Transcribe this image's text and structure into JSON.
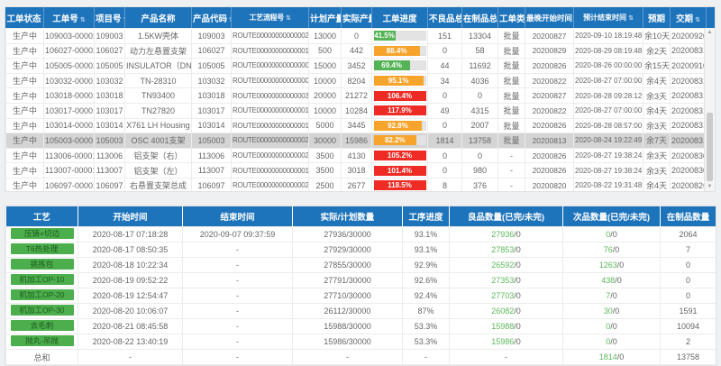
{
  "colors": {
    "header_bg": "#1e74bb",
    "green": "#54b354",
    "orange": "#f6a42c",
    "red": "#ee2b24",
    "badge_green": "#4cae4c",
    "selected_row": "#d4d4d4",
    "good_number": "#5cb85c"
  },
  "scrollbar": {
    "up_icon": "▲",
    "down_icon": "▼"
  },
  "work_orders": {
    "columns": [
      {
        "label": "工单状态",
        "sort": true
      },
      {
        "label": "工单号",
        "sort": true
      },
      {
        "label": "项目号",
        "sort": true
      },
      {
        "label": "产品名称",
        "sort": false
      },
      {
        "label": "产品代码",
        "sort": true
      },
      {
        "label": "工艺流程号",
        "sort": true
      },
      {
        "label": "计划产量",
        "sort": false
      },
      {
        "label": "实际产量",
        "sort": false
      },
      {
        "label": "工单进度",
        "sort": false
      },
      {
        "label": "不良品总数",
        "sort": false
      },
      {
        "label": "在制品总数",
        "sort": false
      },
      {
        "label": "工单类别",
        "sort": false
      },
      {
        "label": "最晚开始时间",
        "sort": true
      },
      {
        "label": "预计结束时间",
        "sort": true
      },
      {
        "label": "预期",
        "sort": false
      },
      {
        "label": "交期",
        "sort": true
      }
    ],
    "rows": [
      {
        "status": "生产中",
        "order_no": "109003-00002",
        "project_no": "109003",
        "product_name": "1.5KW壳体",
        "product_code": "109003",
        "route_no": "ROUTE0000000000000269",
        "planned_qty": "13000",
        "actual_qty": "0",
        "progress": {
          "pct": "41.5%",
          "value": 41.5,
          "level": "green"
        },
        "defect_total": "151",
        "wip_total": "13304",
        "order_type": "批量",
        "latest_start": "20200827",
        "estimated_end": "2020-09-10 18:19:48",
        "remaining": "余10天",
        "due_date": "20200920",
        "selected": false
      },
      {
        "status": "生产中",
        "order_no": "106027-00002",
        "project_no": "106027",
        "product_name": "动力左悬置支架",
        "product_code": "106027",
        "route_no": "ROUTE0000000000000104",
        "planned_qty": "500",
        "actual_qty": "442",
        "progress": {
          "pct": "88.4%",
          "value": 88.4,
          "level": "orange"
        },
        "defect_total": "0",
        "wip_total": "58",
        "order_type": "批量",
        "latest_start": "20200829",
        "estimated_end": "2020-08-29 08:19:48",
        "remaining": "余2天",
        "due_date": "20200831",
        "selected": false
      },
      {
        "status": "生产中",
        "order_no": "105005-00002",
        "project_no": "105005",
        "product_name": "INSULATOR（DN8C）",
        "product_code": "105005",
        "route_no": "ROUTE0000000000000074",
        "planned_qty": "15000",
        "actual_qty": "3452",
        "progress": {
          "pct": "69.4%",
          "value": 69.4,
          "level": "green"
        },
        "defect_total": "44",
        "wip_total": "11692",
        "order_type": "批量",
        "latest_start": "20200826",
        "estimated_end": "2020-08-26 00:00:00",
        "remaining": "余15天",
        "due_date": "20200910",
        "selected": false
      },
      {
        "status": "生产中",
        "order_no": "103032-00001",
        "project_no": "103032",
        "product_name": "TN-28310",
        "product_code": "103032",
        "route_no": "ROUTE0000000000000028",
        "planned_qty": "10000",
        "actual_qty": "8204",
        "progress": {
          "pct": "95.1%",
          "value": 95.1,
          "level": "orange"
        },
        "defect_total": "34",
        "wip_total": "4036",
        "order_type": "批量",
        "latest_start": "20200822",
        "estimated_end": "2020-08-27 07:00:00",
        "remaining": "余4天",
        "due_date": "20200831",
        "selected": false
      },
      {
        "status": "生产中",
        "order_no": "103018-00001",
        "project_no": "103018",
        "product_name": "TN93400",
        "product_code": "103018",
        "route_no": "ROUTE0000000000000336",
        "planned_qty": "20000",
        "actual_qty": "21272",
        "progress": {
          "pct": "106.4%",
          "value": 106.4,
          "level": "red"
        },
        "defect_total": "0",
        "wip_total": "0",
        "order_type": "批量",
        "latest_start": "20200827",
        "estimated_end": "2020-08-28 09:28:12",
        "remaining": "余3天",
        "due_date": "20200831",
        "selected": false
      },
      {
        "status": "生产中",
        "order_no": "103017-00001",
        "project_no": "103017",
        "product_name": "TN27820",
        "product_code": "103017",
        "route_no": "ROUTE0000000000000109",
        "planned_qty": "10000",
        "actual_qty": "10284",
        "progress": {
          "pct": "117.9%",
          "value": 117.9,
          "level": "red"
        },
        "defect_total": "49",
        "wip_total": "4315",
        "order_type": "批量",
        "latest_start": "20200822",
        "estimated_end": "2020-08-27 07:00:00",
        "remaining": "余4天",
        "due_date": "20200831",
        "selected": false
      },
      {
        "status": "生产中",
        "order_no": "103014-00001",
        "project_no": "103014",
        "product_name": "X761 LH Housing",
        "product_code": "103014",
        "route_no": "ROUTE0000000000000150",
        "planned_qty": "5000",
        "actual_qty": "3445",
        "progress": {
          "pct": "92.8%",
          "value": 92.8,
          "level": "orange"
        },
        "defect_total": "0",
        "wip_total": "2007",
        "order_type": "批量",
        "latest_start": "20200826",
        "estimated_end": "2020-08-28 08:57:00",
        "remaining": "余3天",
        "due_date": "20200831",
        "selected": false
      },
      {
        "status": "生产中",
        "order_no": "105003-00001",
        "project_no": "105003",
        "product_name": "OSC 4001支架",
        "product_code": "105003",
        "route_no": "ROUTE0000000000000244",
        "planned_qty": "30000",
        "actual_qty": "15986",
        "progress": {
          "pct": "82.2%",
          "value": 82.2,
          "level": "orange"
        },
        "defect_total": "1814",
        "wip_total": "13758",
        "order_type": "批量",
        "latest_start": "20200813",
        "estimated_end": "2020-08-24 19:22:49",
        "remaining": "余7天",
        "due_date": "20200831",
        "selected": true
      },
      {
        "status": "生产中",
        "order_no": "113006-00001",
        "project_no": "113006",
        "product_name": "铝支架（右）",
        "product_code": "113006",
        "route_no": "ROUTE0000000000000221",
        "planned_qty": "3500",
        "actual_qty": "4130",
        "progress": {
          "pct": "105.2%",
          "value": 105.2,
          "level": "red"
        },
        "defect_total": "0",
        "wip_total": "0",
        "order_type": "-",
        "latest_start": "20200826",
        "estimated_end": "2020-08-27 19:38:24",
        "remaining": "余3天",
        "due_date": "20200830",
        "selected": false
      },
      {
        "status": "生产中",
        "order_no": "113007-00001",
        "project_no": "113007",
        "product_name": "铝支架（左）",
        "product_code": "113007",
        "route_no": "ROUTE0000000000000107",
        "planned_qty": "3500",
        "actual_qty": "3018",
        "progress": {
          "pct": "101.4%",
          "value": 101.4,
          "level": "red"
        },
        "defect_total": "0",
        "wip_total": "980",
        "order_type": "-",
        "latest_start": "20200826",
        "estimated_end": "2020-08-27 19:38:24",
        "remaining": "余3天",
        "due_date": "20200830",
        "selected": false
      },
      {
        "status": "生产中",
        "order_no": "106097-00001",
        "project_no": "106097",
        "product_name": "右悬置支架总成",
        "product_code": "106097",
        "route_no": "ROUTE0000000000000241",
        "planned_qty": "2500",
        "actual_qty": "2677",
        "progress": {
          "pct": "118.5%",
          "value": 118.5,
          "level": "red"
        },
        "defect_total": "8",
        "wip_total": "376",
        "order_type": "-",
        "latest_start": "20200820",
        "estimated_end": "2020-08-22 19:31:48",
        "remaining": "余4天",
        "due_date": "20200826",
        "selected": false
      }
    ]
  },
  "process_detail": {
    "columns": [
      {
        "label": "工艺",
        "sort": false
      },
      {
        "label": "开始时间",
        "sort": false
      },
      {
        "label": "结束时间",
        "sort": false
      },
      {
        "label": "实际/计划数量",
        "sort": false
      },
      {
        "label": "工序进度",
        "sort": false
      },
      {
        "label": "良品数量(已完/未完)",
        "sort": false
      },
      {
        "label": "次品数量(已完/未完)",
        "sort": false
      },
      {
        "label": "在制品数量",
        "sort": false
      }
    ],
    "rows": [
      {
        "process": "压铸+切边",
        "is_total": false,
        "start_time": "2020-08-17 07:18:28",
        "end_time": "2020-09-07 09:37:59",
        "actual_planned": "27936/30000",
        "progress_pct": "93.1%",
        "good_qty": "27936/0",
        "defect_qty": "0/0",
        "wip_qty": "2064"
      },
      {
        "process": "T6热处理",
        "is_total": false,
        "start_time": "2020-08-17 08:50:35",
        "end_time": "-",
        "actual_planned": "27929/30000",
        "progress_pct": "93.1%",
        "good_qty": "27853/0",
        "defect_qty": "76/0",
        "wip_qty": "7"
      },
      {
        "process": "挑拣包",
        "is_total": false,
        "start_time": "2020-08-18 10:22:34",
        "end_time": "-",
        "actual_planned": "27855/30000",
        "progress_pct": "92.9%",
        "good_qty": "26592/0",
        "defect_qty": "1263/0",
        "wip_qty": "0"
      },
      {
        "process": "机加工OP-10",
        "is_total": false,
        "start_time": "2020-08-19 09:52:22",
        "end_time": "-",
        "actual_planned": "27791/30000",
        "progress_pct": "92.6%",
        "good_qty": "27353/0",
        "defect_qty": "438/0",
        "wip_qty": "0"
      },
      {
        "process": "机加工OP-20",
        "is_total": false,
        "start_time": "2020-08-19 12:54:47",
        "end_time": "-",
        "actual_planned": "27710/30000",
        "progress_pct": "92.4%",
        "good_qty": "27703/0",
        "defect_qty": "7/0",
        "wip_qty": "0"
      },
      {
        "process": "机加工OP-30",
        "is_total": false,
        "start_time": "2020-08-20 10:06:07",
        "end_time": "-",
        "actual_planned": "26112/30000",
        "progress_pct": "87%",
        "good_qty": "26082/0",
        "defect_qty": "30/0",
        "wip_qty": "1591"
      },
      {
        "process": "去毛刺",
        "is_total": false,
        "start_time": "2020-08-21 08:45:58",
        "end_time": "-",
        "actual_planned": "15988/30000",
        "progress_pct": "53.3%",
        "good_qty": "15988/0",
        "defect_qty": "0/0",
        "wip_qty": "10094"
      },
      {
        "process": "抛丸-吊抛",
        "is_total": false,
        "start_time": "2020-08-22 13:40:19",
        "end_time": "-",
        "actual_planned": "15986/30000",
        "progress_pct": "53.3%",
        "good_qty": "15986/0",
        "defect_qty": "0/0",
        "wip_qty": "2"
      },
      {
        "process": "总和",
        "is_total": true,
        "start_time": "-",
        "end_time": "-",
        "actual_planned": "-",
        "progress_pct": "-",
        "good_qty": "-",
        "defect_qty": "1814/0",
        "wip_qty": "13758"
      }
    ]
  }
}
